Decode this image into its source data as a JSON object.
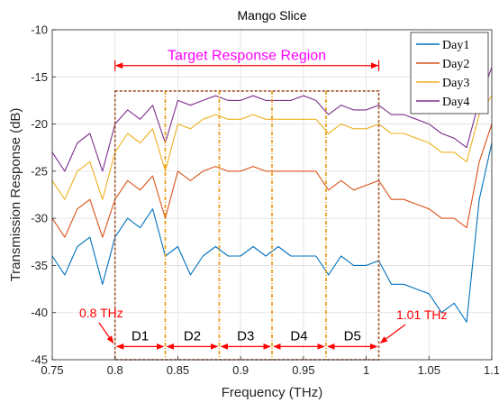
{
  "chart_data": {
    "type": "line",
    "title": "Mango Slice",
    "xlabel": "Frequency (THz)",
    "ylabel": "Transmission Response (dB)",
    "xlim": [
      0.75,
      1.1
    ],
    "ylim": [
      -45,
      -10
    ],
    "xticks": [
      0.75,
      0.8,
      0.85,
      0.9,
      0.95,
      1.0,
      1.05,
      1.1
    ],
    "xtick_labels": [
      "0.75",
      "0.8",
      "0.85",
      "0.9",
      "0.95",
      "1",
      "1.05",
      "1.1"
    ],
    "yticks": [
      -45,
      -40,
      -35,
      -30,
      -25,
      -20,
      -15,
      -10
    ],
    "ytick_labels": [
      "-45",
      "-40",
      "-35",
      "-30",
      "-25",
      "-20",
      "-15",
      "-10"
    ],
    "grid": true,
    "legend_position": "top-right",
    "series": [
      {
        "name": "Day1",
        "color": "#0072BD",
        "x": [
          0.75,
          0.76,
          0.77,
          0.78,
          0.79,
          0.8,
          0.81,
          0.82,
          0.83,
          0.84,
          0.85,
          0.86,
          0.87,
          0.88,
          0.89,
          0.9,
          0.91,
          0.92,
          0.93,
          0.94,
          0.95,
          0.96,
          0.97,
          0.98,
          0.99,
          1.0,
          1.01,
          1.02,
          1.03,
          1.04,
          1.05,
          1.06,
          1.07,
          1.08,
          1.09,
          1.1
        ],
        "y": [
          -34,
          -36,
          -33,
          -32,
          -37,
          -32,
          -30,
          -31,
          -29,
          -34,
          -33,
          -36,
          -34,
          -33,
          -34,
          -34,
          -33,
          -34,
          -33,
          -34,
          -34,
          -34,
          -36,
          -34,
          -35,
          -35,
          -34.5,
          -37,
          -37,
          -37.5,
          -38,
          -40,
          -39,
          -41,
          -28,
          -22
        ]
      },
      {
        "name": "Day2",
        "color": "#D95319",
        "x": [
          0.75,
          0.76,
          0.77,
          0.78,
          0.79,
          0.8,
          0.81,
          0.82,
          0.83,
          0.84,
          0.85,
          0.86,
          0.87,
          0.88,
          0.89,
          0.9,
          0.91,
          0.92,
          0.93,
          0.94,
          0.95,
          0.96,
          0.97,
          0.98,
          0.99,
          1.0,
          1.01,
          1.02,
          1.03,
          1.04,
          1.05,
          1.06,
          1.07,
          1.08,
          1.09,
          1.1
        ],
        "y": [
          -30,
          -32,
          -29,
          -28,
          -32,
          -28,
          -26,
          -27,
          -25.5,
          -30,
          -25,
          -26,
          -25,
          -24.5,
          -25,
          -25,
          -24.5,
          -25,
          -25,
          -25,
          -25,
          -25,
          -27,
          -26,
          -27,
          -26.5,
          -26,
          -28,
          -28,
          -28.5,
          -29,
          -30,
          -30,
          -31,
          -24,
          -20
        ]
      },
      {
        "name": "Day3",
        "color": "#EDB120",
        "x": [
          0.75,
          0.76,
          0.77,
          0.78,
          0.79,
          0.8,
          0.81,
          0.82,
          0.83,
          0.84,
          0.85,
          0.86,
          0.87,
          0.88,
          0.89,
          0.9,
          0.91,
          0.92,
          0.93,
          0.94,
          0.95,
          0.96,
          0.97,
          0.98,
          0.99,
          1.0,
          1.01,
          1.02,
          1.03,
          1.04,
          1.05,
          1.06,
          1.07,
          1.08,
          1.09,
          1.1
        ],
        "y": [
          -26,
          -28,
          -25,
          -24,
          -28,
          -23,
          -21,
          -22,
          -20.5,
          -25,
          -20,
          -20.5,
          -19.5,
          -19,
          -19.5,
          -19.5,
          -19,
          -19.5,
          -19.5,
          -19.5,
          -19.5,
          -19.5,
          -21,
          -20,
          -20.5,
          -20.5,
          -20,
          -21,
          -21,
          -21.5,
          -22,
          -23,
          -23,
          -24,
          -19,
          -17
        ]
      },
      {
        "name": "Day4",
        "color": "#7E2F8E",
        "x": [
          0.75,
          0.76,
          0.77,
          0.78,
          0.79,
          0.8,
          0.81,
          0.82,
          0.83,
          0.84,
          0.85,
          0.86,
          0.87,
          0.88,
          0.89,
          0.9,
          0.91,
          0.92,
          0.93,
          0.94,
          0.95,
          0.96,
          0.97,
          0.98,
          0.99,
          1.0,
          1.01,
          1.02,
          1.03,
          1.04,
          1.05,
          1.06,
          1.07,
          1.08,
          1.09,
          1.1
        ],
        "y": [
          -23,
          -25,
          -22,
          -21,
          -25,
          -20,
          -18.5,
          -19.5,
          -18,
          -22,
          -17.5,
          -18,
          -17.5,
          -17,
          -17.5,
          -17.5,
          -17,
          -17.5,
          -17.5,
          -17.5,
          -17,
          -17.5,
          -19,
          -18,
          -18.5,
          -18.5,
          -18,
          -19,
          -19,
          -19.5,
          -20,
          -21,
          -21.5,
          -22.5,
          -17.5,
          -14
        ]
      }
    ]
  },
  "annotations": {
    "region_label": "Target Response Region",
    "region_x": [
      0.8,
      1.01
    ],
    "boundaries": [
      0.8,
      0.84,
      0.883,
      0.925,
      0.968,
      1.01
    ],
    "region_y": [
      -16.5,
      -45
    ],
    "divisions": [
      "D1",
      "D2",
      "D3",
      "D4",
      "D5"
    ],
    "left_freq_label": "0.8 THz",
    "right_freq_label": "1.01 THz"
  }
}
